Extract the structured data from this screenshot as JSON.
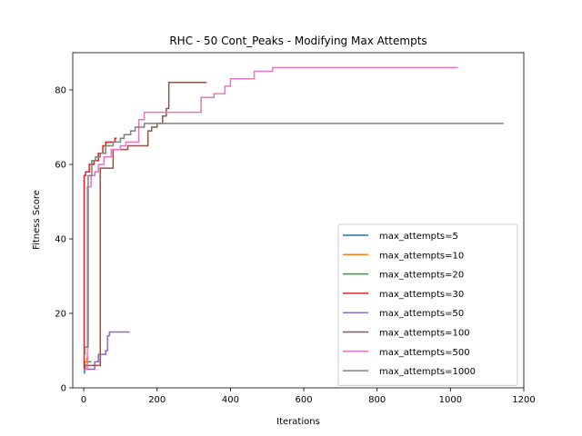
{
  "chart_data": {
    "type": "line",
    "title": "RHC - 50 Cont_Peaks - Modifying Max Attempts",
    "xlabel": "Iterations",
    "ylabel": "Fitness Score",
    "xlim": [
      -30,
      1200
    ],
    "ylim": [
      0,
      90
    ],
    "xticks": [
      0,
      200,
      400,
      600,
      800,
      1000,
      1200
    ],
    "yticks": [
      0,
      20,
      40,
      60,
      80
    ],
    "grid": false,
    "legend_position": "lower right",
    "series": [
      {
        "name": "max_attempts=5",
        "color": "#1f77b4",
        "x": [
          0,
          2,
          2,
          4
        ],
        "y": [
          4,
          4,
          5,
          5
        ]
      },
      {
        "name": "max_attempts=10",
        "color": "#ff7f0e",
        "x": [
          0,
          3,
          3,
          8,
          8,
          14
        ],
        "y": [
          6,
          6,
          7,
          7,
          8,
          8
        ]
      },
      {
        "name": "max_attempts=20",
        "color": "#2ca02c",
        "x": [
          0,
          4,
          4,
          10,
          10,
          20
        ],
        "y": [
          5,
          5,
          6,
          6,
          7,
          7
        ]
      },
      {
        "name": "max_attempts=30",
        "color": "#d62728",
        "x": [
          0,
          1,
          1,
          5,
          5,
          15,
          15,
          28,
          28,
          40,
          40,
          52,
          52,
          60,
          60,
          85,
          85,
          90
        ],
        "y": [
          5,
          5,
          57,
          57,
          58,
          58,
          60,
          60,
          61,
          61,
          63,
          63,
          65,
          65,
          66,
          66,
          67,
          67
        ]
      },
      {
        "name": "max_attempts=50",
        "color": "#9467bd",
        "x": [
          0,
          30,
          30,
          40,
          40,
          60,
          60,
          65,
          65,
          70,
          70,
          125
        ],
        "y": [
          5,
          5,
          7,
          7,
          9,
          9,
          10,
          10,
          14,
          14,
          15,
          15
        ]
      },
      {
        "name": "max_attempts=100",
        "color": "#8c564b",
        "x": [
          0,
          45,
          45,
          80,
          80,
          120,
          120,
          175,
          175,
          185,
          185,
          200,
          200,
          215,
          215,
          225,
          225,
          232,
          232,
          335
        ],
        "y": [
          6,
          6,
          59,
          59,
          64,
          64,
          65,
          65,
          69,
          69,
          70,
          70,
          71,
          71,
          73,
          73,
          75,
          75,
          82,
          82
        ]
      },
      {
        "name": "max_attempts=500",
        "color": "#e377c2",
        "x": [
          0,
          10,
          10,
          20,
          20,
          30,
          30,
          40,
          40,
          55,
          55,
          75,
          75,
          100,
          100,
          115,
          115,
          150,
          150,
          165,
          165,
          320,
          320,
          355,
          355,
          385,
          385,
          400,
          400,
          465,
          465,
          515,
          515,
          1020
        ],
        "y": [
          5,
          5,
          54,
          54,
          57,
          57,
          58,
          58,
          60,
          60,
          62,
          62,
          64,
          64,
          65,
          65,
          66,
          66,
          72,
          72,
          74,
          74,
          78,
          78,
          79,
          79,
          81,
          81,
          83,
          83,
          85,
          85,
          86,
          86
        ]
      },
      {
        "name": "max_attempts=1000",
        "color": "#7f7f7f",
        "x": [
          0,
          3,
          3,
          12,
          12,
          22,
          22,
          32,
          32,
          45,
          45,
          60,
          60,
          80,
          80,
          100,
          100,
          110,
          110,
          128,
          128,
          140,
          140,
          165,
          165,
          180,
          180,
          1145
        ],
        "y": [
          9,
          9,
          11,
          11,
          57,
          57,
          61,
          61,
          62,
          62,
          63,
          63,
          65,
          65,
          66,
          66,
          67,
          67,
          68,
          68,
          69,
          69,
          70,
          70,
          71,
          71,
          71,
          71
        ]
      }
    ]
  }
}
